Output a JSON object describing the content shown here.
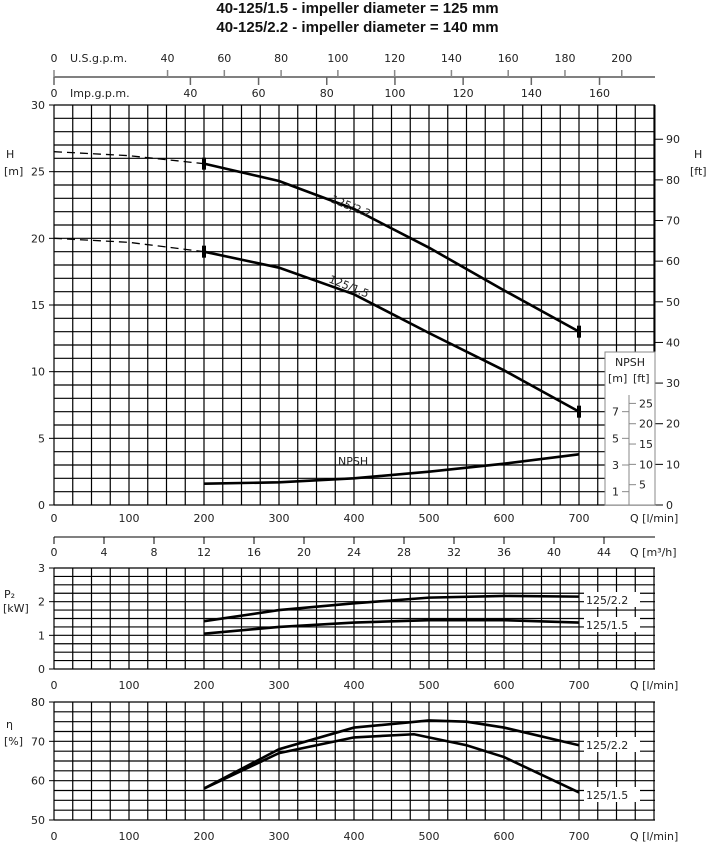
{
  "titles": [
    "40-125/1.5 - impeller diameter = 125 mm",
    "40-125/2.2 - impeller diameter = 140 mm"
  ],
  "chart_data": [
    {
      "type": "line",
      "name": "head",
      "ylabel": "H [m]",
      "ylabel_right": "H [ft]",
      "xlabel": "Q [l/min]",
      "xlim": [
        0,
        800
      ],
      "ylim": [
        0,
        30
      ],
      "x_ticks": [
        0,
        100,
        200,
        300,
        400,
        500,
        600,
        700
      ],
      "y_ticks": [
        0,
        5,
        10,
        15,
        20,
        25,
        30
      ],
      "y_ticks_ft": [
        0,
        10,
        20,
        30,
        40,
        50,
        60,
        70,
        80,
        90
      ],
      "top_axes": {
        "usgpm_label": "U.S.g.p.m.",
        "usgpm_ticks": [
          0,
          40,
          60,
          80,
          100,
          120,
          140,
          160,
          180,
          200
        ],
        "impgpm_label": "Imp.g.p.m.",
        "impgpm_ticks": [
          0,
          40,
          60,
          80,
          100,
          120,
          140,
          160
        ]
      },
      "npsh_scale": {
        "title": "NPSH",
        "m_label": "[m]",
        "ft_label": "[ft]",
        "m_ticks": [
          1,
          3,
          5,
          7
        ],
        "ft_ticks": [
          5,
          10,
          15,
          20,
          25
        ]
      },
      "series": [
        {
          "name": "125/2.2",
          "dashed_x": [
            0,
            100,
            200
          ],
          "dashed_y": [
            26.5,
            26.2,
            25.6
          ],
          "x": [
            200,
            300,
            400,
            500,
            600,
            700
          ],
          "y": [
            25.6,
            24.3,
            22.2,
            19.3,
            16.1,
            13.0
          ]
        },
        {
          "name": "125/1.5",
          "dashed_x": [
            0,
            100,
            200
          ],
          "dashed_y": [
            20.0,
            19.7,
            19.0
          ],
          "x": [
            200,
            300,
            400,
            500,
            600,
            700
          ],
          "y": [
            19.0,
            17.8,
            15.8,
            12.9,
            10.1,
            7.0
          ]
        },
        {
          "name": "NPSH",
          "x": [
            200,
            300,
            400,
            500,
            600,
            700
          ],
          "y": [
            1.6,
            1.7,
            2.0,
            2.5,
            3.1,
            3.8
          ]
        }
      ],
      "m3h_axis": {
        "label": "Q [m³/h]",
        "ticks": [
          0,
          4,
          8,
          12,
          16,
          20,
          24,
          28,
          32,
          36,
          40,
          44
        ]
      }
    },
    {
      "type": "line",
      "name": "power",
      "ylabel": "P2 [kW]",
      "xlabel": "Q [l/min]",
      "ylim": [
        0,
        3
      ],
      "y_ticks": [
        0,
        1,
        2,
        3
      ],
      "x_ticks": [
        0,
        100,
        200,
        300,
        400,
        500,
        600,
        700
      ],
      "series": [
        {
          "name": "125/2.2",
          "x": [
            200,
            300,
            400,
            500,
            600,
            700
          ],
          "y": [
            1.42,
            1.75,
            1.95,
            2.12,
            2.17,
            2.15
          ]
        },
        {
          "name": "125/1.5",
          "x": [
            200,
            300,
            400,
            500,
            600,
            700
          ],
          "y": [
            1.05,
            1.25,
            1.38,
            1.45,
            1.45,
            1.38
          ]
        }
      ]
    },
    {
      "type": "line",
      "name": "efficiency",
      "ylabel": "η [%]",
      "xlabel": "Q [l/min]",
      "ylim": [
        50,
        80
      ],
      "y_ticks": [
        50,
        60,
        70,
        80
      ],
      "x_ticks": [
        0,
        100,
        200,
        300,
        400,
        500,
        600,
        700
      ],
      "series": [
        {
          "name": "125/2.2",
          "x": [
            200,
            300,
            400,
            500,
            550,
            600,
            700
          ],
          "y": [
            58,
            68,
            73.5,
            75.3,
            75,
            73.5,
            69
          ]
        },
        {
          "name": "125/1.5",
          "x": [
            200,
            300,
            400,
            480,
            550,
            600,
            700
          ],
          "y": [
            58,
            67,
            71,
            71.8,
            69,
            66,
            57
          ]
        }
      ]
    }
  ]
}
